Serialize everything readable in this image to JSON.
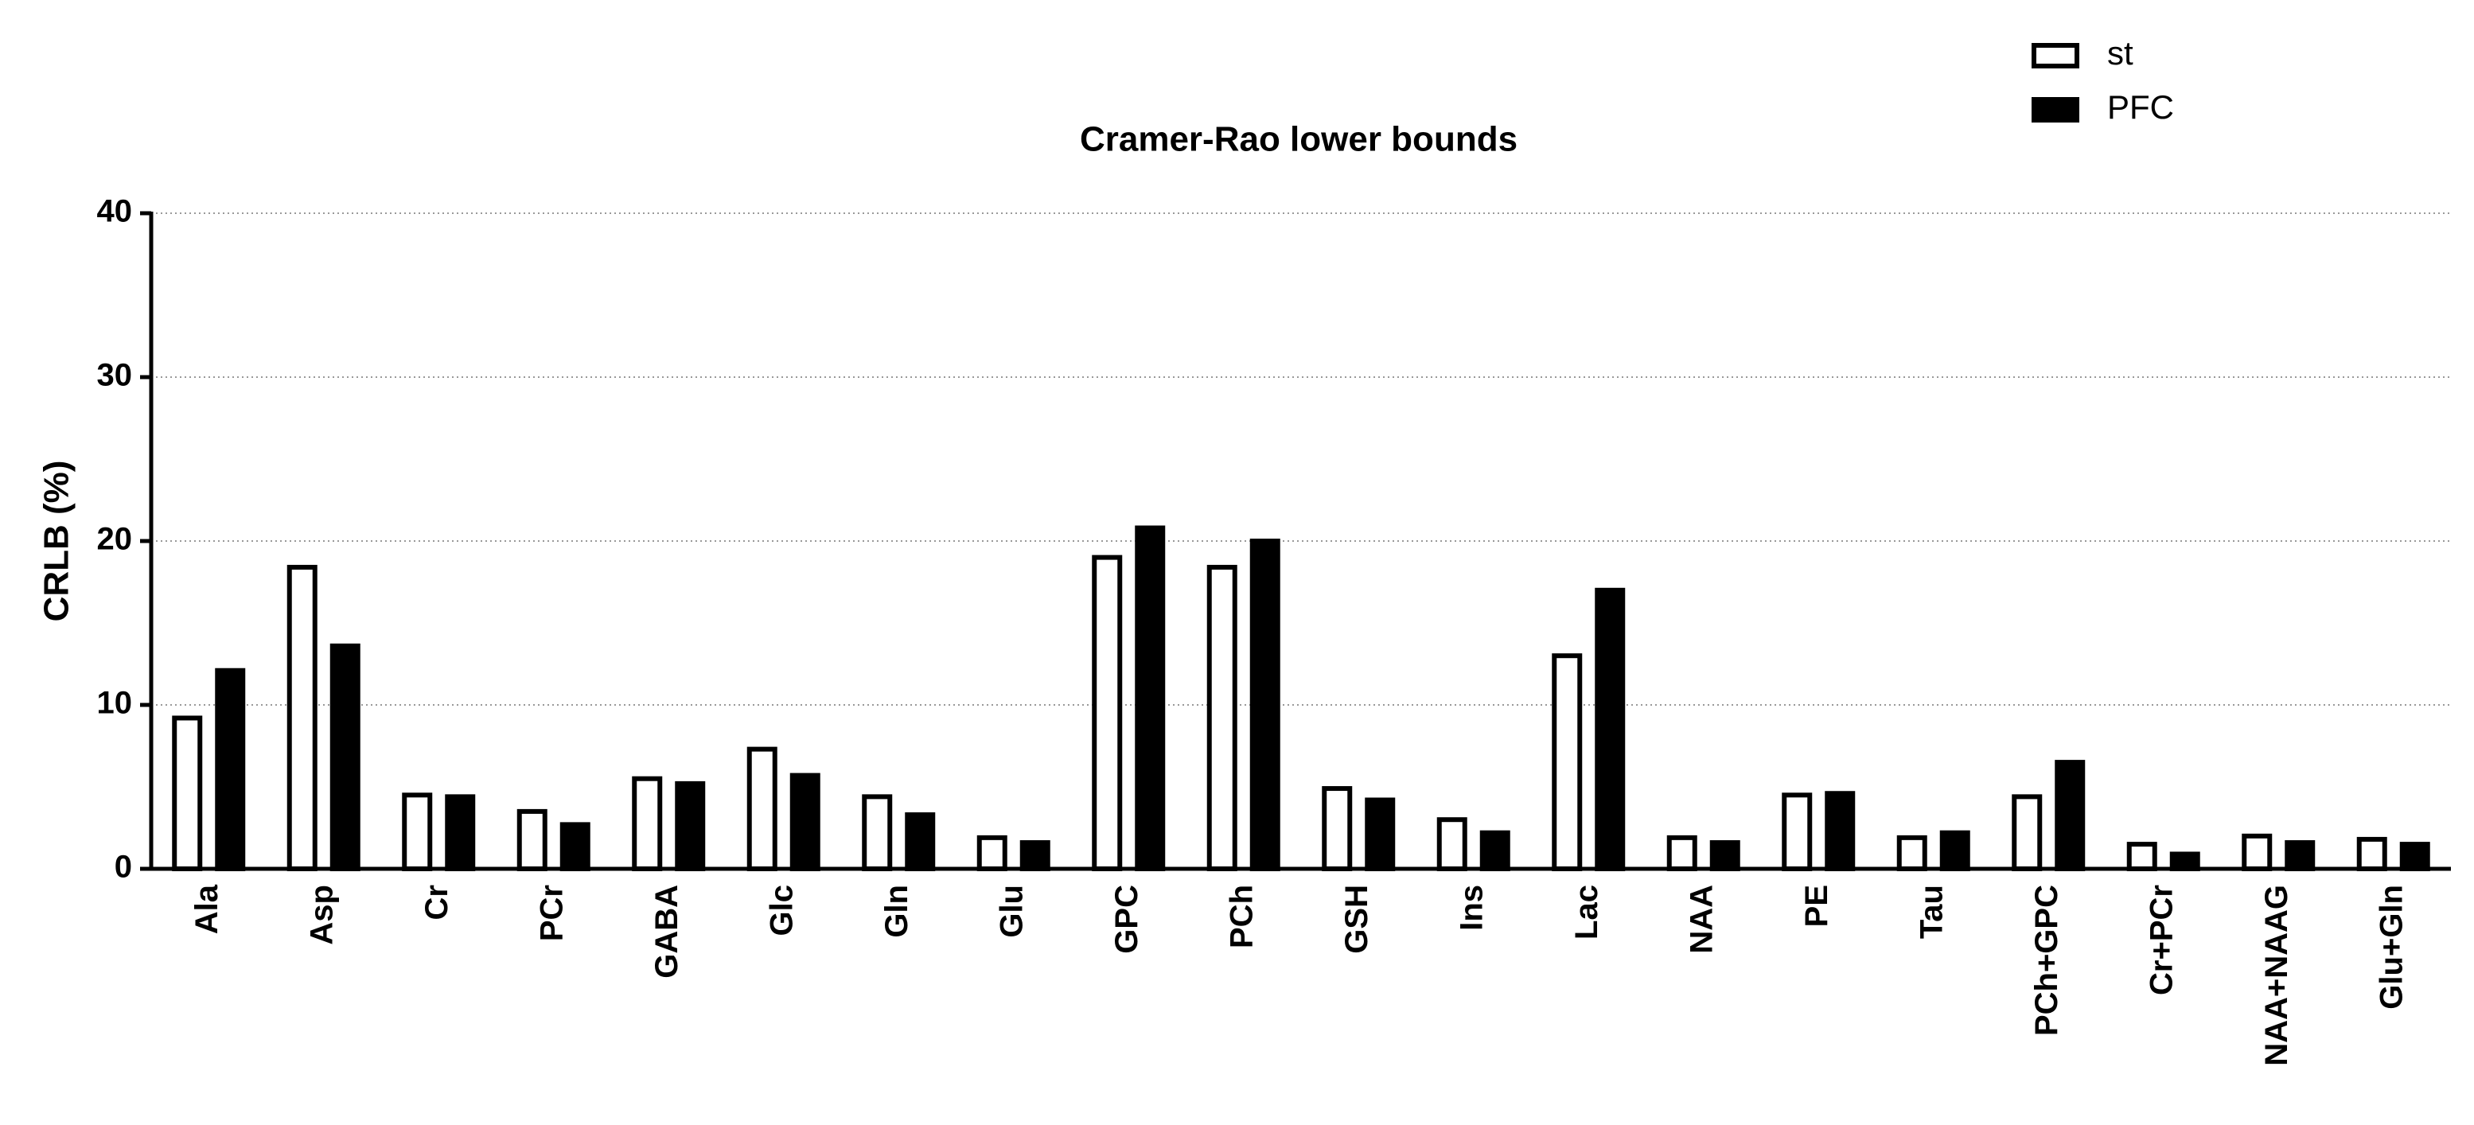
{
  "chart_data": {
    "type": "bar",
    "title": "Cramer-Rao lower bounds",
    "y_label": "CRLB (%)",
    "categories": [
      "Ala",
      "Asp",
      "Cr",
      "PCr",
      "GABA",
      "Glc",
      "Gln",
      "Glu",
      "GPC",
      "PCh",
      "GSH",
      "Ins",
      "Lac",
      "NAA",
      "PE",
      "Tau",
      "PCh+GPC",
      "Cr+PCr",
      "NAA+NAAG",
      "Glu+Gln"
    ],
    "series": [
      {
        "name": "st",
        "color": "#ffffff",
        "values": [
          9.2,
          18.4,
          4.5,
          3.5,
          5.5,
          7.3,
          4.4,
          1.9,
          19.0,
          18.4,
          4.9,
          3.0,
          13.0,
          1.9,
          4.5,
          1.9,
          4.4,
          1.5,
          2.0,
          1.8
        ]
      },
      {
        "name": "PFC",
        "color": "#000000",
        "values": [
          12.1,
          13.6,
          4.4,
          2.7,
          5.2,
          5.7,
          3.3,
          1.6,
          20.8,
          20.0,
          4.2,
          2.2,
          17.0,
          1.6,
          4.6,
          2.2,
          6.5,
          0.9,
          1.6,
          1.5
        ]
      }
    ],
    "ylim": [
      0,
      40
    ],
    "yticks": [
      0,
      10,
      20,
      30,
      40
    ],
    "grid": true,
    "legend": "top-right"
  }
}
